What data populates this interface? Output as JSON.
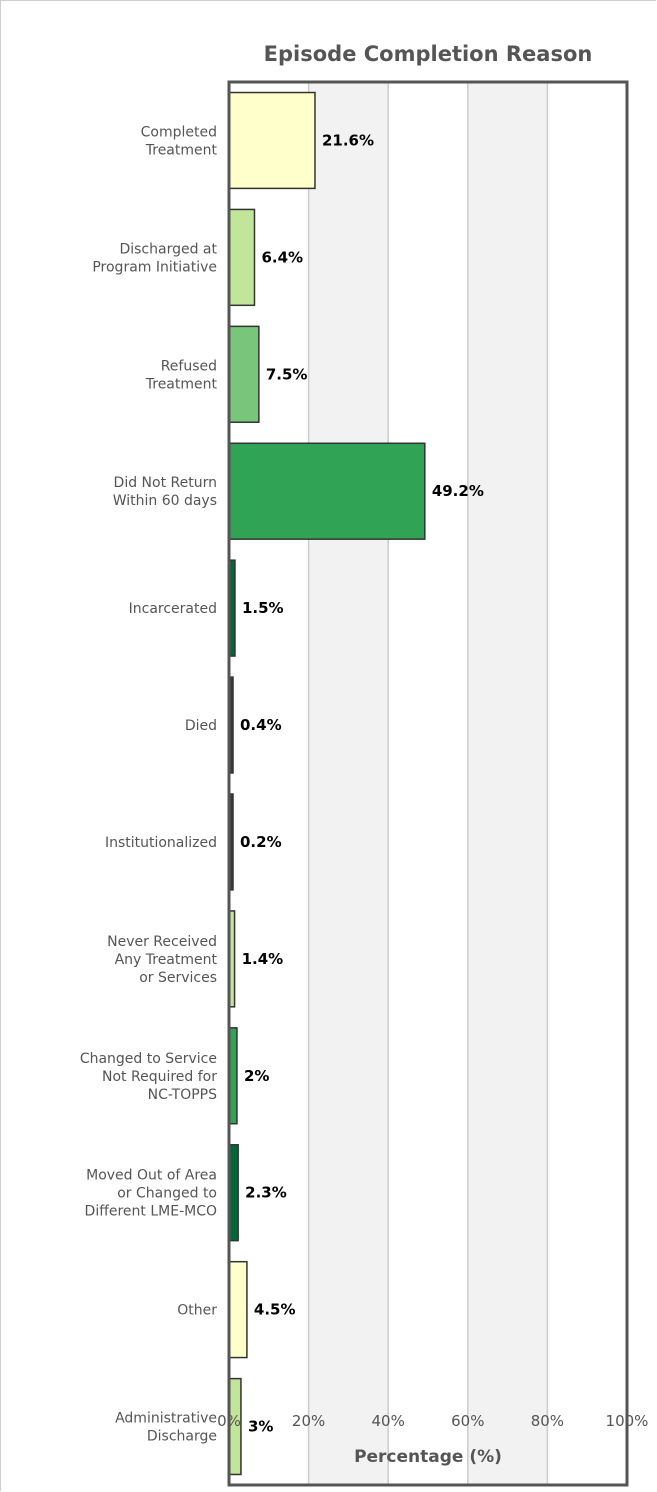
{
  "chart_data": {
    "type": "bar",
    "orientation": "horizontal",
    "title": "Episode Completion Reason",
    "xlabel": "Percentage (%)",
    "xlim": [
      0,
      100
    ],
    "ticks": [
      "0%",
      "20%",
      "40%",
      "60%",
      "80%",
      "100%"
    ],
    "categories": [
      [
        "Completed",
        "Treatment"
      ],
      [
        "Discharged at",
        "Program Initiative"
      ],
      [
        "Refused",
        "Treatment"
      ],
      [
        "Did Not Return",
        "Within 60 days"
      ],
      [
        "Incarcerated"
      ],
      [
        "Died"
      ],
      [
        "Institutionalized"
      ],
      [
        "Never Received",
        "Any Treatment",
        "or Services"
      ],
      [
        "Changed to Service",
        "Not Required for",
        "NC-TOPPS"
      ],
      [
        "Moved Out of Area",
        "or Changed to",
        "Different LME-MCO"
      ],
      [
        "Other"
      ],
      [
        "Administrative",
        "Discharge"
      ]
    ],
    "values": [
      21.6,
      6.4,
      7.5,
      49.2,
      1.5,
      0.4,
      0.2,
      1.4,
      2,
      2.3,
      4.5,
      3
    ],
    "value_labels": [
      "21.6%",
      "6.4%",
      "7.5%",
      "49.2%",
      "1.5%",
      "0.4%",
      "0.2%",
      "1.4%",
      "2%",
      "2.3%",
      "4.5%",
      "3%"
    ],
    "bar_colors": [
      "#ffffcc",
      "#c2e699",
      "#78c679",
      "#31a354",
      "#006837",
      "#3a3a3a",
      "#3a3a3a",
      "#c2e699",
      "#31a354",
      "#006837",
      "#ffffcc",
      "#c2e699"
    ],
    "plot_background_bands": [
      "#ffffff",
      "#f2f2f2"
    ],
    "grid": true,
    "legend": "none"
  }
}
